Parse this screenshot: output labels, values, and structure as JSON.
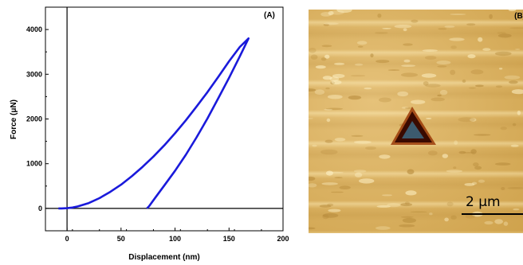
{
  "chart_data": {
    "type": "line",
    "panel_label": "(A)",
    "xlabel": "Displacement (nm)",
    "ylabel": "Force (μN)",
    "xlim": [
      -20,
      200
    ],
    "ylim": [
      -500,
      4500
    ],
    "xticks": [
      0,
      50,
      100,
      150,
      200
    ],
    "yticks": [
      0,
      1000,
      2000,
      3000,
      4000
    ],
    "grid": false,
    "series": [
      {
        "name": "",
        "color": "#1a1adb",
        "x": [
          -8,
          -5,
          0,
          5,
          10,
          20,
          30,
          40,
          50,
          60,
          70,
          80,
          90,
          100,
          110,
          120,
          130,
          140,
          150,
          160,
          168,
          165,
          160,
          150,
          140,
          130,
          120,
          110,
          100,
          90,
          82,
          76,
          74
        ],
        "y": [
          0,
          0,
          5,
          20,
          45,
          120,
          230,
          370,
          530,
          720,
          930,
          1160,
          1410,
          1680,
          1970,
          2280,
          2600,
          2940,
          3290,
          3610,
          3800,
          3650,
          3400,
          2920,
          2460,
          2010,
          1590,
          1200,
          840,
          510,
          250,
          50,
          0
        ]
      }
    ]
  },
  "afm": {
    "panel_label": "(B)",
    "scale_bar_label": "2 μm",
    "colors": {
      "surface": "#d9b060",
      "indent_rim": "#7a1a05",
      "indent_center": "#3c5a6e"
    }
  }
}
